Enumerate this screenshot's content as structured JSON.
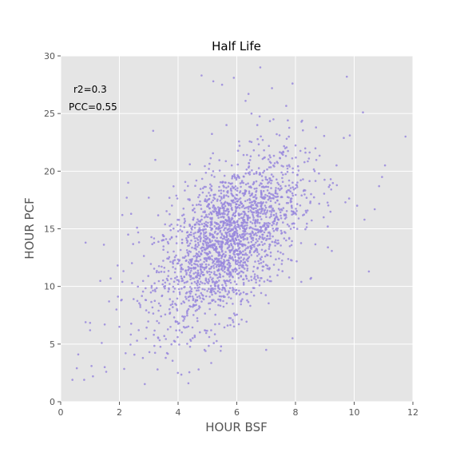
{
  "chart_data": {
    "type": "scatter",
    "title": "Half Life",
    "xlabel": "HOUR BSF",
    "ylabel": "HOUR PCF",
    "xlim": [
      0,
      12
    ],
    "ylim": [
      0,
      30
    ],
    "xticks": [
      0,
      2,
      4,
      6,
      8,
      10,
      12
    ],
    "yticks": [
      0,
      5,
      10,
      15,
      20,
      25,
      30
    ],
    "grid": true,
    "point_color": "#9988dd",
    "background_color": "#e5e5e5",
    "grid_color": "#ffffff",
    "annotations": [
      "r2=0.3",
      "PCC=0.55"
    ],
    "cluster": {
      "n": 2200,
      "x_mean": 5.7,
      "x_sd": 1.25,
      "y_mean": 14.0,
      "y_sd": 3.7,
      "correlation": 0.55,
      "x_min": 0.4,
      "x_max": 11.8,
      "y_min": 1.5,
      "y_max": 29
    },
    "outliers": [
      {
        "x": 0.4,
        "y": 1.9
      },
      {
        "x": 0.55,
        "y": 2.9
      },
      {
        "x": 0.6,
        "y": 4.1
      },
      {
        "x": 0.85,
        "y": 13.8
      },
      {
        "x": 0.85,
        "y": 6.9
      },
      {
        "x": 0.8,
        "y": 1.9
      },
      {
        "x": 1.0,
        "y": 6.2
      },
      {
        "x": 1.05,
        "y": 3.1
      },
      {
        "x": 1.1,
        "y": 2.2
      },
      {
        "x": 1.4,
        "y": 5.1
      },
      {
        "x": 1.5,
        "y": 3.0
      },
      {
        "x": 1.5,
        "y": 6.7
      },
      {
        "x": 1.7,
        "y": 10.7
      },
      {
        "x": 1.65,
        "y": 8.7
      },
      {
        "x": 1.9,
        "y": 8.0
      },
      {
        "x": 2.0,
        "y": 6.5
      },
      {
        "x": 2.1,
        "y": 16.2
      },
      {
        "x": 2.1,
        "y": 10.4
      },
      {
        "x": 2.25,
        "y": 17.7
      },
      {
        "x": 2.3,
        "y": 19.0
      },
      {
        "x": 2.3,
        "y": 14.5
      },
      {
        "x": 2.4,
        "y": 16.3
      },
      {
        "x": 2.6,
        "y": 15.1
      },
      {
        "x": 3.0,
        "y": 17.7
      },
      {
        "x": 3.15,
        "y": 23.5
      },
      {
        "x": 4.4,
        "y": 20.6
      },
      {
        "x": 4.7,
        "y": 2.8
      },
      {
        "x": 4.35,
        "y": 1.6
      },
      {
        "x": 4.8,
        "y": 28.3
      },
      {
        "x": 5.05,
        "y": 20.2
      },
      {
        "x": 5.2,
        "y": 27.8
      },
      {
        "x": 5.5,
        "y": 27.5
      },
      {
        "x": 5.65,
        "y": 24.0
      },
      {
        "x": 5.9,
        "y": 28.1
      },
      {
        "x": 6.3,
        "y": 26.1
      },
      {
        "x": 6.4,
        "y": 26.7
      },
      {
        "x": 6.5,
        "y": 25.0
      },
      {
        "x": 6.8,
        "y": 29.0
      },
      {
        "x": 6.7,
        "y": 24.0
      },
      {
        "x": 7.2,
        "y": 27.2
      },
      {
        "x": 7.25,
        "y": 24.5
      },
      {
        "x": 7.9,
        "y": 27.6
      },
      {
        "x": 8.7,
        "y": 23.8
      },
      {
        "x": 8.8,
        "y": 19.8
      },
      {
        "x": 9.1,
        "y": 15.2
      },
      {
        "x": 9.4,
        "y": 20.5
      },
      {
        "x": 9.7,
        "y": 17.3
      },
      {
        "x": 9.75,
        "y": 28.2
      },
      {
        "x": 9.85,
        "y": 23.1
      },
      {
        "x": 10.1,
        "y": 17.0
      },
      {
        "x": 10.3,
        "y": 25.1
      },
      {
        "x": 10.35,
        "y": 15.8
      },
      {
        "x": 10.5,
        "y": 11.3
      },
      {
        "x": 10.7,
        "y": 16.7
      },
      {
        "x": 10.85,
        "y": 18.7
      },
      {
        "x": 10.95,
        "y": 19.5
      },
      {
        "x": 11.05,
        "y": 20.5
      },
      {
        "x": 11.75,
        "y": 23.0
      },
      {
        "x": 7.0,
        "y": 4.5
      },
      {
        "x": 4.9,
        "y": 4.5
      },
      {
        "x": 7.9,
        "y": 5.5
      },
      {
        "x": 3.3,
        "y": 2.8
      },
      {
        "x": 2.8,
        "y": 3.8
      },
      {
        "x": 8.2,
        "y": 10.4
      },
      {
        "x": 9.2,
        "y": 19.3
      }
    ]
  }
}
